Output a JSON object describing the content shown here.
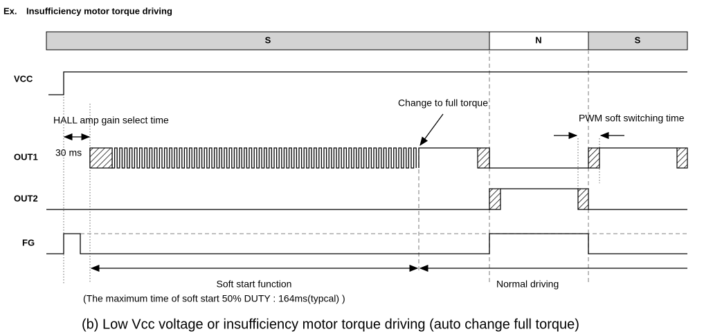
{
  "title": {
    "prefix": "Ex.",
    "text": "Insufficiency motor torque driving"
  },
  "phases": [
    "S",
    "N",
    "S"
  ],
  "signals": [
    "VCC",
    "OUT1",
    "OUT2",
    "FG"
  ],
  "annotations": {
    "hall": "HALL amp gain select time",
    "hall_time": "30 ms",
    "change": "Change to full torque",
    "pwm": "PWM soft switching time",
    "soft_start": "Soft start function",
    "soft_start_note": "(The maximum time of soft start 50% DUTY : 164ms(typcal) )",
    "normal": "Normal driving"
  },
  "caption": "(b)  Low Vcc voltage or insufficiency motor torque driving (auto change full torque)"
}
